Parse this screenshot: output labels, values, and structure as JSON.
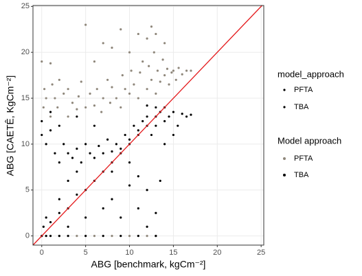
{
  "chart_data": {
    "type": "scatter",
    "x_label": "ABG [benchmark, kgCm⁻²]",
    "y_label": "ABG [CAETÊ, KgCm⁻²]",
    "xlim": [
      -1,
      25.3
    ],
    "ylim": [
      -1,
      25.1
    ],
    "xticks": [
      0,
      5,
      10,
      15,
      20,
      25
    ],
    "yticks": [
      0,
      5,
      10,
      15,
      20,
      25
    ],
    "grid": true,
    "reference_line": {
      "slope": 1,
      "intercept": 0,
      "color": "#e41a1c"
    },
    "size_legend": {
      "title": "model_approach",
      "labels": [
        "PFTA",
        "TBA"
      ],
      "color": "#000000"
    },
    "legend": {
      "title": "Model approach"
    },
    "series": [
      {
        "name": "PFTA",
        "color": "#8f877b",
        "x": [
          0,
          0.3,
          0.5,
          0.2,
          1,
          1.2,
          1.5,
          2,
          2.5,
          1.8,
          3,
          3.5,
          4,
          4.2,
          4.5,
          5,
          5.5,
          6,
          6.3,
          6.8,
          7,
          7.5,
          7.8,
          8,
          8.5,
          9,
          9.2,
          9.5,
          10,
          10.2,
          10.5,
          11,
          11.2,
          11.5,
          12,
          12.2,
          12.5,
          12.8,
          13,
          13.2,
          13.5,
          13.8,
          14,
          14.3,
          14.5,
          14.8,
          15,
          15.3,
          15.6,
          16,
          16.5,
          17,
          13,
          12,
          9,
          5,
          8,
          10,
          11,
          6,
          7,
          14,
          12.5,
          0,
          2,
          4,
          6,
          8,
          10,
          12,
          13,
          3,
          1
        ],
        "values": [
          19,
          16,
          15,
          14,
          18.8,
          16.5,
          15,
          17,
          15.5,
          14,
          16,
          14.5,
          13.8,
          15.2,
          16.8,
          14,
          15.5,
          14.2,
          16,
          13.5,
          15,
          17,
          14.5,
          16.2,
          15,
          14,
          17.5,
          16,
          15.5,
          18,
          16.5,
          15,
          17.8,
          19,
          16,
          18.5,
          17,
          20,
          15.5,
          18,
          16.8,
          19.2,
          17.5,
          18.2,
          16.5,
          17.8,
          18,
          17,
          18.3,
          17.6,
          18,
          18,
          22,
          21.5,
          22.5,
          23,
          20.5,
          20,
          22,
          19,
          21,
          21,
          22.8,
          0,
          0,
          0,
          0,
          0,
          0,
          0,
          0,
          13,
          13
        ]
      },
      {
        "name": "TBA",
        "color": "#000000",
        "x": [
          0,
          0.5,
          1,
          2,
          3,
          5,
          7,
          9,
          11,
          13,
          0.2,
          0.5,
          1,
          2,
          3,
          4,
          5,
          6,
          7,
          8,
          9,
          10,
          11,
          12,
          13,
          14,
          3,
          5,
          7,
          9,
          11,
          12,
          13,
          8,
          10,
          4,
          2,
          0,
          0,
          0.5,
          1,
          1.5,
          2,
          2.5,
          3,
          3.5,
          4,
          4.5,
          5,
          5.5,
          6,
          6.5,
          7,
          7.5,
          8,
          8.5,
          9,
          9.5,
          10,
          10.5,
          11,
          11.5,
          12,
          12.5,
          13,
          13.5,
          14,
          14.5,
          15,
          15.5,
          16,
          16.5,
          17,
          14,
          15,
          13,
          12,
          6,
          4,
          1,
          8,
          10,
          11,
          12,
          13.5,
          3,
          2
        ],
        "values": [
          0,
          0,
          0,
          0,
          0,
          0,
          0,
          0,
          0,
          0,
          1,
          2,
          1.5,
          2.5,
          3,
          4.5,
          5,
          6,
          7,
          8,
          9,
          10,
          11,
          12,
          13,
          14,
          1,
          2,
          3,
          2,
          3,
          1,
          2.5,
          4,
          5.5,
          7,
          8,
          11,
          12.5,
          10,
          11.5,
          9,
          12,
          10,
          9,
          8.5,
          9.5,
          8,
          10,
          9,
          8.5,
          9.8,
          9,
          10.5,
          9.2,
          10,
          9.5,
          11,
          10.5,
          12,
          11.5,
          12.5,
          13,
          11,
          12,
          13.5,
          12.5,
          13,
          13.5,
          12,
          13.3,
          13,
          13.2,
          10,
          11,
          14,
          14.2,
          12,
          13,
          13.5,
          7,
          8,
          6.5,
          5,
          6,
          6,
          4
        ]
      }
    ]
  }
}
